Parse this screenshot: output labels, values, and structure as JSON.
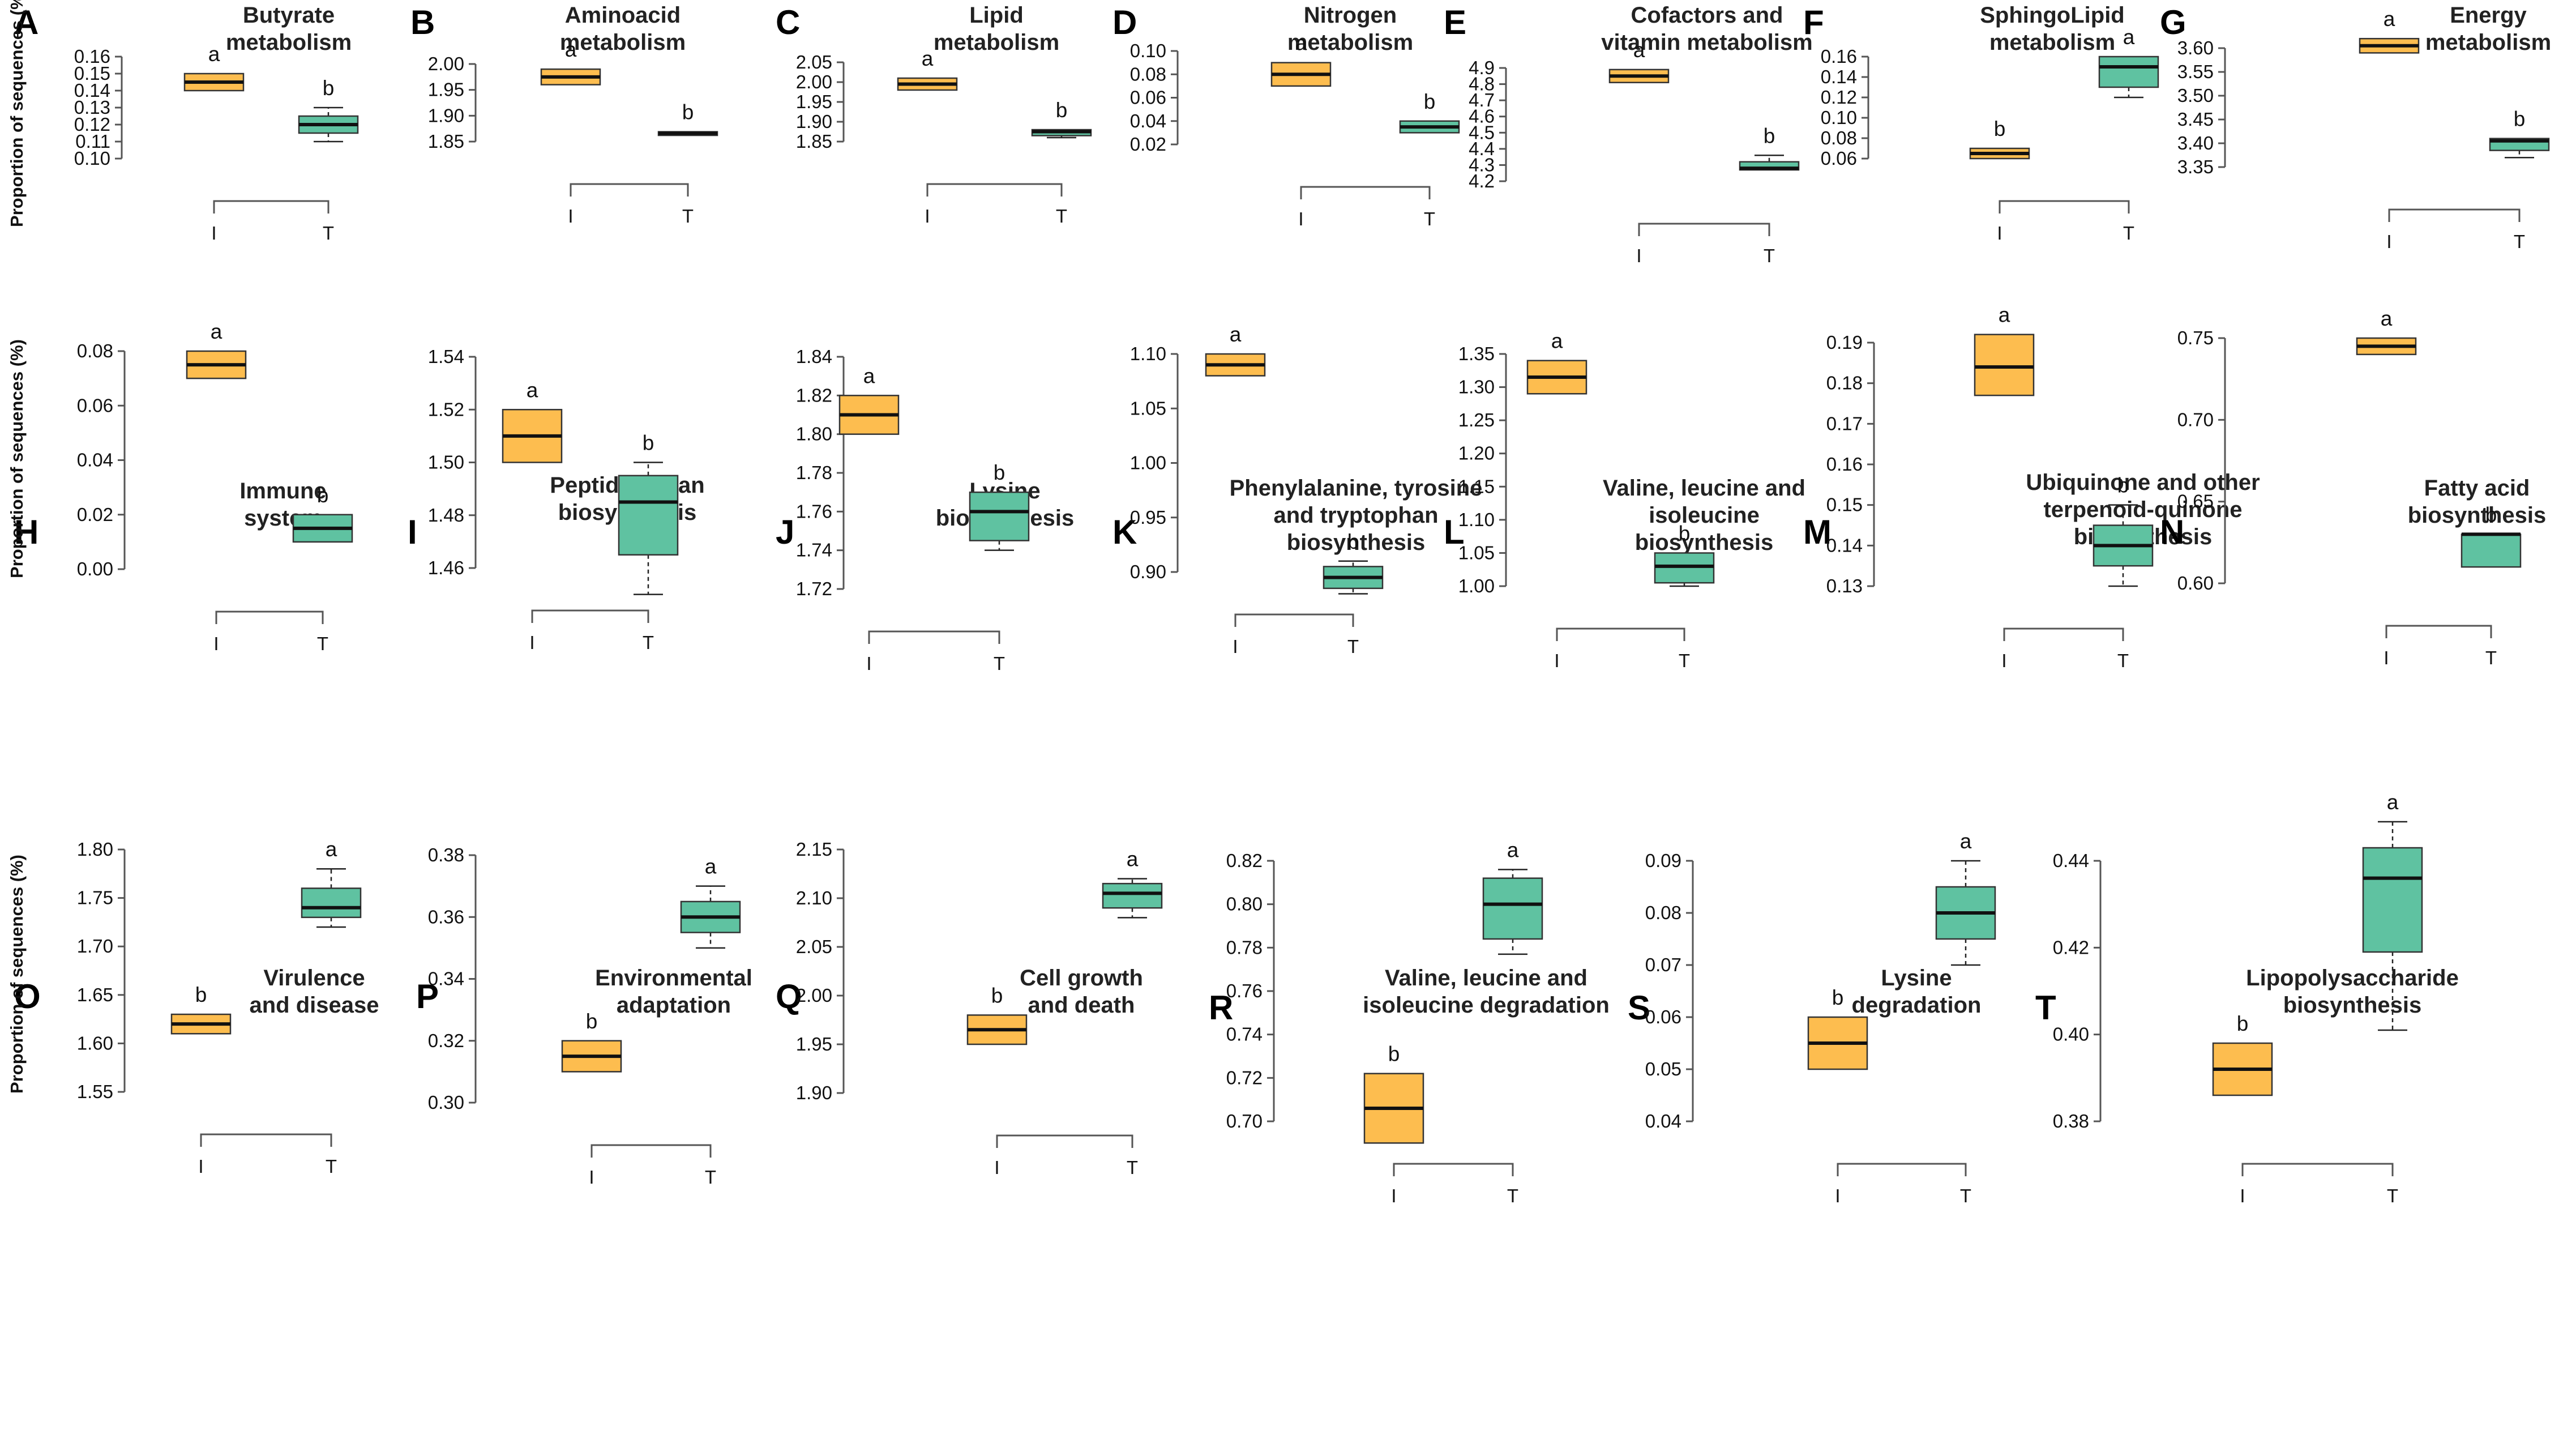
{
  "figure": {
    "y_axis_label": "Proportion of sequences (%)",
    "colors": {
      "I": "#FDBD4F",
      "T": "#5FC2A1"
    }
  },
  "chart_data": [
    {
      "panel": "A",
      "type": "box",
      "title": [
        "Butyrate",
        "metabolism"
      ],
      "categories": [
        "I",
        "T"
      ],
      "yticks": [
        "0.10",
        "0.11",
        "0.12",
        "0.13",
        "0.14",
        "0.15",
        "0.16"
      ],
      "ylim": [
        0.1,
        0.16
      ],
      "boxes": [
        {
          "group": "I",
          "min": 0.14,
          "q1": 0.14,
          "median": 0.145,
          "q3": 0.15,
          "max": 0.15,
          "label": "a"
        },
        {
          "group": "T",
          "min": 0.11,
          "q1": 0.115,
          "median": 0.12,
          "q3": 0.125,
          "max": 0.13,
          "label": "b"
        }
      ]
    },
    {
      "panel": "B",
      "type": "box",
      "title": [
        "Aminoacid",
        "metabolism"
      ],
      "categories": [
        "I",
        "T"
      ],
      "yticks": [
        "1.85",
        "1.90",
        "1.95",
        "2.00"
      ],
      "ylim": [
        1.85,
        2.0
      ],
      "boxes": [
        {
          "group": "I",
          "min": 1.96,
          "q1": 1.96,
          "median": 1.975,
          "q3": 1.99,
          "max": 1.99,
          "label": "a"
        },
        {
          "group": "T",
          "min": 1.862,
          "q1": 1.862,
          "median": 1.866,
          "q3": 1.869,
          "max": 1.869,
          "label": "b"
        }
      ]
    },
    {
      "panel": "C",
      "type": "box",
      "title": [
        "Lipid",
        "metabolism"
      ],
      "categories": [
        "I",
        "T"
      ],
      "yticks": [
        "1.85",
        "1.90",
        "1.95",
        "2.00",
        "2.05"
      ],
      "ylim": [
        1.85,
        2.05
      ],
      "boxes": [
        {
          "group": "I",
          "min": 1.98,
          "q1": 1.98,
          "median": 1.995,
          "q3": 2.01,
          "max": 2.01,
          "label": "a"
        },
        {
          "group": "T",
          "min": 1.86,
          "q1": 1.865,
          "median": 1.875,
          "q3": 1.88,
          "max": 1.88,
          "label": "b"
        }
      ]
    },
    {
      "panel": "D",
      "type": "box",
      "title": [
        "Nitrogen",
        "metabolism"
      ],
      "categories": [
        "I",
        "T"
      ],
      "yticks": [
        "0.02",
        "0.04",
        "0.06",
        "0.08",
        "0.10"
      ],
      "ylim": [
        0.02,
        0.1
      ],
      "boxes": [
        {
          "group": "I",
          "min": 0.07,
          "q1": 0.07,
          "median": 0.08,
          "q3": 0.09,
          "max": 0.09,
          "label": "a"
        },
        {
          "group": "T",
          "min": 0.03,
          "q1": 0.03,
          "median": 0.035,
          "q3": 0.04,
          "max": 0.04,
          "label": "b"
        }
      ]
    },
    {
      "panel": "E",
      "type": "box",
      "title": [
        "Cofactors and",
        "vitamin metabolism"
      ],
      "categories": [
        "I",
        "T"
      ],
      "yticks": [
        "4.2",
        "4.3",
        "4.4",
        "4.5",
        "4.6",
        "4.7",
        "4.8",
        "4.9"
      ],
      "ylim": [
        4.2,
        4.9
      ],
      "boxes": [
        {
          "group": "I",
          "min": 4.81,
          "q1": 4.81,
          "median": 4.85,
          "q3": 4.89,
          "max": 4.89,
          "label": "a"
        },
        {
          "group": "T",
          "min": 4.27,
          "q1": 4.27,
          "median": 4.28,
          "q3": 4.32,
          "max": 4.36,
          "label": "b"
        }
      ]
    },
    {
      "panel": "F",
      "type": "box",
      "title": [
        "SphingoLipid",
        "metabolism"
      ],
      "categories": [
        "I",
        "T"
      ],
      "yticks": [
        "0.06",
        "0.08",
        "0.10",
        "0.12",
        "0.14",
        "0.16"
      ],
      "ylim": [
        0.06,
        0.16
      ],
      "boxes": [
        {
          "group": "I",
          "min": 0.06,
          "q1": 0.06,
          "median": 0.065,
          "q3": 0.07,
          "max": 0.07,
          "label": "b"
        },
        {
          "group": "T",
          "min": 0.12,
          "q1": 0.13,
          "median": 0.15,
          "q3": 0.16,
          "max": 0.16,
          "label": "a"
        }
      ]
    },
    {
      "panel": "G",
      "type": "box",
      "title": [
        "Energy",
        "metabolism"
      ],
      "categories": [
        "I",
        "T"
      ],
      "yticks": [
        "3.35",
        "3.40",
        "3.45",
        "3.50",
        "3.55",
        "3.60"
      ],
      "ylim": [
        3.35,
        3.6
      ],
      "boxes": [
        {
          "group": "I",
          "min": 3.59,
          "q1": 3.59,
          "median": 3.605,
          "q3": 3.62,
          "max": 3.62,
          "label": "a"
        },
        {
          "group": "T",
          "min": 3.37,
          "q1": 3.385,
          "median": 3.405,
          "q3": 3.41,
          "max": 3.41,
          "label": "b"
        }
      ]
    },
    {
      "panel": "H",
      "type": "box",
      "title": [
        "Immune",
        "system"
      ],
      "categories": [
        "I",
        "T"
      ],
      "yticks": [
        "0.00",
        "0.02",
        "0.04",
        "0.06",
        "0.08"
      ],
      "ylim": [
        0.0,
        0.08
      ],
      "boxes": [
        {
          "group": "I",
          "min": 0.07,
          "q1": 0.07,
          "median": 0.075,
          "q3": 0.08,
          "max": 0.08,
          "label": "a"
        },
        {
          "group": "T",
          "min": 0.01,
          "q1": 0.01,
          "median": 0.015,
          "q3": 0.02,
          "max": 0.02,
          "label": "b"
        }
      ]
    },
    {
      "panel": "I",
      "type": "box",
      "title": [
        "Peptidoglycan",
        "biosynthesis"
      ],
      "categories": [
        "I",
        "T"
      ],
      "yticks": [
        "1.46",
        "1.48",
        "1.50",
        "1.52",
        "1.54"
      ],
      "ylim": [
        1.46,
        1.54
      ],
      "boxes": [
        {
          "group": "I",
          "min": 1.5,
          "q1": 1.5,
          "median": 1.51,
          "q3": 1.52,
          "max": 1.52,
          "label": "a"
        },
        {
          "group": "T",
          "min": 1.45,
          "q1": 1.465,
          "median": 1.485,
          "q3": 1.495,
          "max": 1.5,
          "label": "b"
        }
      ]
    },
    {
      "panel": "J",
      "type": "box",
      "title": [
        "Lysine",
        "biosynthesis"
      ],
      "categories": [
        "I",
        "T"
      ],
      "yticks": [
        "1.72",
        "1.74",
        "1.76",
        "1.78",
        "1.80",
        "1.82",
        "1.84"
      ],
      "ylim": [
        1.72,
        1.84
      ],
      "boxes": [
        {
          "group": "I",
          "min": 1.8,
          "q1": 1.8,
          "median": 1.81,
          "q3": 1.82,
          "max": 1.82,
          "label": "a"
        },
        {
          "group": "T",
          "min": 1.74,
          "q1": 1.745,
          "median": 1.76,
          "q3": 1.77,
          "max": 1.77,
          "label": "b"
        }
      ]
    },
    {
      "panel": "K",
      "type": "box",
      "title": [
        "Phenylalanine,  tyrosine",
        "and tryptophan",
        "biosynthesis"
      ],
      "categories": [
        "I",
        "T"
      ],
      "yticks": [
        "0.90",
        "0.95",
        "1.00",
        "1.05",
        "1.10"
      ],
      "ylim": [
        0.9,
        1.1
      ],
      "boxes": [
        {
          "group": "I",
          "min": 1.08,
          "q1": 1.08,
          "median": 1.09,
          "q3": 1.1,
          "max": 1.1,
          "label": "a"
        },
        {
          "group": "T",
          "min": 0.88,
          "q1": 0.885,
          "median": 0.895,
          "q3": 0.905,
          "max": 0.91,
          "label": "b"
        }
      ]
    },
    {
      "panel": "L",
      "type": "box",
      "title": [
        "Valine, leucine and",
        "isoleucine",
        "biosynthesis"
      ],
      "categories": [
        "I",
        "T"
      ],
      "yticks": [
        "1.00",
        "1.05",
        "1.10",
        "1.15",
        "1.20",
        "1.25",
        "1.30",
        "1.35"
      ],
      "ylim": [
        1.0,
        1.35
      ],
      "boxes": [
        {
          "group": "I",
          "min": 1.29,
          "q1": 1.29,
          "median": 1.315,
          "q3": 1.34,
          "max": 1.34,
          "label": "a"
        },
        {
          "group": "T",
          "min": 1.0,
          "q1": 1.005,
          "median": 1.03,
          "q3": 1.05,
          "max": 1.05,
          "label": "b"
        }
      ]
    },
    {
      "panel": "M",
      "type": "box",
      "title": [
        "Ubiquinone  and other",
        "terpenoid-quinone",
        "biosynthesis"
      ],
      "categories": [
        "I",
        "T"
      ],
      "yticks": [
        "0.13",
        "0.14",
        "0.15",
        "0.16",
        "0.17",
        "0.18",
        "0.19"
      ],
      "ylim": [
        0.13,
        0.19
      ],
      "boxes": [
        {
          "group": "I",
          "min": 0.177,
          "q1": 0.177,
          "median": 0.184,
          "q3": 0.192,
          "max": 0.192,
          "label": "a"
        },
        {
          "group": "T",
          "min": 0.13,
          "q1": 0.135,
          "median": 0.14,
          "q3": 0.145,
          "max": 0.15,
          "label": "b"
        }
      ]
    },
    {
      "panel": "N",
      "type": "box",
      "title": [
        "Fatty acid",
        "biosynthesis"
      ],
      "categories": [
        "I",
        "T"
      ],
      "yticks": [
        "0.60",
        "0.65",
        "0.70",
        "0.75"
      ],
      "ylim": [
        0.6,
        0.75
      ],
      "boxes": [
        {
          "group": "I",
          "min": 0.74,
          "q1": 0.74,
          "median": 0.745,
          "q3": 0.75,
          "max": 0.75,
          "label": "a"
        },
        {
          "group": "T",
          "min": 0.61,
          "q1": 0.61,
          "median": 0.63,
          "q3": 0.63,
          "max": 0.63,
          "label": "b"
        }
      ]
    },
    {
      "panel": "O",
      "type": "box",
      "title": [
        "Virulence",
        "and disease"
      ],
      "categories": [
        "I",
        "T"
      ],
      "yticks": [
        "1.55",
        "1.60",
        "1.65",
        "1.70",
        "1.75",
        "1.80"
      ],
      "ylim": [
        1.55,
        1.8
      ],
      "boxes": [
        {
          "group": "I",
          "min": 1.61,
          "q1": 1.61,
          "median": 1.62,
          "q3": 1.63,
          "max": 1.63,
          "label": "b"
        },
        {
          "group": "T",
          "min": 1.72,
          "q1": 1.73,
          "median": 1.74,
          "q3": 1.76,
          "max": 1.78,
          "label": "a"
        }
      ]
    },
    {
      "panel": "P",
      "type": "box",
      "title": [
        "Environmental",
        "adaptation"
      ],
      "categories": [
        "I",
        "T"
      ],
      "yticks": [
        "0.30",
        "0.32",
        "0.34",
        "0.36",
        "0.38"
      ],
      "ylim": [
        0.3,
        0.38
      ],
      "boxes": [
        {
          "group": "I",
          "min": 0.31,
          "q1": 0.31,
          "median": 0.315,
          "q3": 0.32,
          "max": 0.32,
          "label": "b"
        },
        {
          "group": "T",
          "min": 0.35,
          "q1": 0.355,
          "median": 0.36,
          "q3": 0.365,
          "max": 0.37,
          "label": "a"
        }
      ]
    },
    {
      "panel": "Q",
      "type": "box",
      "title": [
        "Cell growth",
        "and death"
      ],
      "categories": [
        "I",
        "T"
      ],
      "yticks": [
        "1.90",
        "1.95",
        "2.00",
        "2.05",
        "2.10",
        "2.15"
      ],
      "ylim": [
        1.9,
        2.15
      ],
      "boxes": [
        {
          "group": "I",
          "min": 1.95,
          "q1": 1.95,
          "median": 1.965,
          "q3": 1.98,
          "max": 1.98,
          "label": "b"
        },
        {
          "group": "T",
          "min": 2.08,
          "q1": 2.09,
          "median": 2.105,
          "q3": 2.115,
          "max": 2.12,
          "label": "a"
        }
      ]
    },
    {
      "panel": "R",
      "type": "box",
      "title": [
        "Valine, leucine and",
        "isoleucine degradation"
      ],
      "categories": [
        "I",
        "T"
      ],
      "yticks": [
        "0.70",
        "0.72",
        "0.74",
        "0.76",
        "0.78",
        "0.80",
        "0.82"
      ],
      "ylim": [
        0.7,
        0.82
      ],
      "boxes": [
        {
          "group": "I",
          "min": 0.69,
          "q1": 0.69,
          "median": 0.706,
          "q3": 0.722,
          "max": 0.722,
          "label": "b"
        },
        {
          "group": "T",
          "min": 0.777,
          "q1": 0.784,
          "median": 0.8,
          "q3": 0.812,
          "max": 0.816,
          "label": "a"
        }
      ]
    },
    {
      "panel": "S",
      "type": "box",
      "title": [
        "Lysine",
        "degradation"
      ],
      "categories": [
        "I",
        "T"
      ],
      "yticks": [
        "0.04",
        "0.05",
        "0.06",
        "0.07",
        "0.08",
        "0.09"
      ],
      "ylim": [
        0.04,
        0.09
      ],
      "boxes": [
        {
          "group": "I",
          "min": 0.05,
          "q1": 0.05,
          "median": 0.055,
          "q3": 0.06,
          "max": 0.06,
          "label": "b"
        },
        {
          "group": "T",
          "min": 0.07,
          "q1": 0.075,
          "median": 0.08,
          "q3": 0.085,
          "max": 0.09,
          "label": "a"
        }
      ]
    },
    {
      "panel": "T",
      "type": "box",
      "title": [
        "Lipopolysaccharide",
        "biosynthesis"
      ],
      "categories": [
        "I",
        "T"
      ],
      "yticks": [
        "0.38",
        "0.40",
        "0.42",
        "0.44"
      ],
      "ylim": [
        0.38,
        0.44
      ],
      "boxes": [
        {
          "group": "I",
          "min": 0.386,
          "q1": 0.386,
          "median": 0.392,
          "q3": 0.398,
          "max": 0.398,
          "label": "b"
        },
        {
          "group": "T",
          "min": 0.401,
          "q1": 0.419,
          "median": 0.436,
          "q3": 0.443,
          "max": 0.449,
          "label": "a"
        }
      ]
    }
  ]
}
